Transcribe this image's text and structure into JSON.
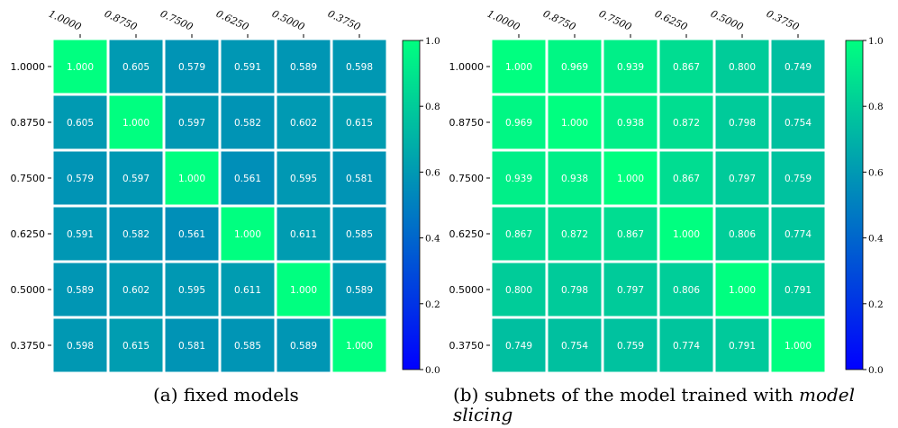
{
  "chart_data": [
    {
      "type": "heatmap",
      "caption": "(a) fixed models",
      "x_labels": [
        "1.0000",
        "0.8750",
        "0.7500",
        "0.6250",
        "0.5000",
        "0.3750"
      ],
      "y_labels": [
        "1.0000",
        "0.8750",
        "0.7500",
        "0.6250",
        "0.5000",
        "0.3750"
      ],
      "values": [
        [
          1.0,
          0.605,
          0.579,
          0.591,
          0.589,
          0.598
        ],
        [
          0.605,
          1.0,
          0.597,
          0.582,
          0.602,
          0.615
        ],
        [
          0.579,
          0.597,
          1.0,
          0.561,
          0.595,
          0.581
        ],
        [
          0.591,
          0.582,
          0.561,
          1.0,
          0.611,
          0.585
        ],
        [
          0.589,
          0.602,
          0.595,
          0.611,
          1.0,
          0.589
        ],
        [
          0.598,
          0.615,
          0.581,
          0.585,
          0.589,
          1.0
        ]
      ],
      "colorbar_range": [
        0.0,
        1.0
      ],
      "colorbar_ticks": [
        "0.0",
        "0.2",
        "0.4",
        "0.6",
        "0.8",
        "1.0"
      ],
      "colormap": "winter",
      "colormap_colors": [
        "#0000ff",
        "#00ff80"
      ],
      "cell_border_color": "#ffffff"
    },
    {
      "type": "heatmap",
      "caption_text": "(b) subnets of the model trained with",
      "caption_emphasis": "model slicing",
      "x_labels": [
        "1.0000",
        "0.8750",
        "0.7500",
        "0.6250",
        "0.5000",
        "0.3750"
      ],
      "y_labels": [
        "1.0000",
        "0.8750",
        "0.7500",
        "0.6250",
        "0.5000",
        "0.3750"
      ],
      "values": [
        [
          1.0,
          0.969,
          0.939,
          0.867,
          0.8,
          0.749
        ],
        [
          0.969,
          1.0,
          0.938,
          0.872,
          0.798,
          0.754
        ],
        [
          0.939,
          0.938,
          1.0,
          0.867,
          0.797,
          0.759
        ],
        [
          0.867,
          0.872,
          0.867,
          1.0,
          0.806,
          0.774
        ],
        [
          0.8,
          0.798,
          0.797,
          0.806,
          1.0,
          0.791
        ],
        [
          0.749,
          0.754,
          0.759,
          0.774,
          0.791,
          1.0
        ]
      ],
      "colorbar_range": [
        0.0,
        1.0
      ],
      "colorbar_ticks": [
        "0.0",
        "0.2",
        "0.4",
        "0.6",
        "0.8",
        "1.0"
      ],
      "colormap": "winter",
      "colormap_colors": [
        "#0000ff",
        "#00ff80"
      ],
      "cell_border_color": "#ffffff"
    }
  ]
}
